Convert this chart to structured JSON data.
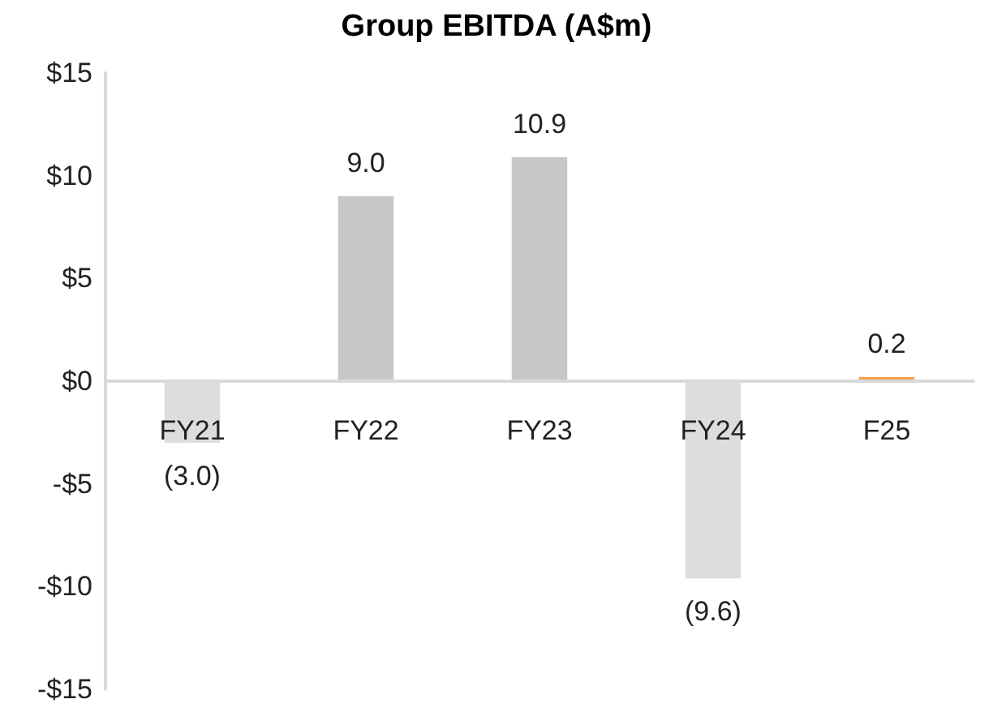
{
  "chart_data": {
    "type": "bar",
    "title": "Group EBITDA (A$m)",
    "categories": [
      "FY21",
      "FY22",
      "FY23",
      "FY24",
      "F25"
    ],
    "values": [
      -3.0,
      9.0,
      10.9,
      -9.6,
      0.2
    ],
    "colors": [
      "#dcdddf",
      "#c6c7c9",
      "#c6c7c9",
      "#dcdddf",
      "#f5a04a"
    ],
    "value_labels": [
      "(3.0)",
      "9.0",
      "10.9",
      "(9.6)",
      "0.2"
    ],
    "ylim": [
      -15,
      15
    ],
    "yticks": [
      {
        "value": -15,
        "label": "-$15"
      },
      {
        "value": -10,
        "label": "-$10"
      },
      {
        "value": -5,
        "label": "-$5"
      },
      {
        "value": 0,
        "label": "$0"
      },
      {
        "value": 5,
        "label": "$5"
      },
      {
        "value": 10,
        "label": "$10"
      },
      {
        "value": 15,
        "label": "$15"
      }
    ]
  }
}
